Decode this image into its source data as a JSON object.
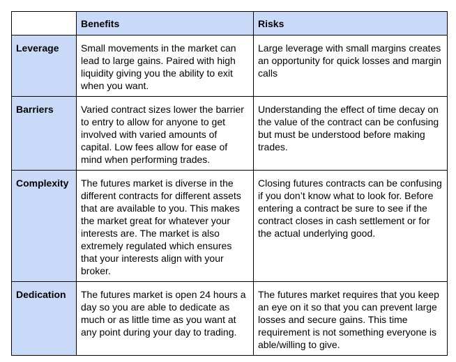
{
  "table": {
    "headers": [
      "",
      "Benefits",
      "Risks"
    ],
    "rows": [
      {
        "label": "Leverage",
        "benefits": "Small movements in the market can lead to large gains. Paired with high liquidity giving you the ability to exit when you want.",
        "risks": "Large leverage with small margins creates an opportunity for quick losses and margin calls"
      },
      {
        "label": "Barriers",
        "benefits": "Varied contract sizes lower the barrier to entry to allow for anyone to get involved with varied amounts of capital. Low fees allow for ease of mind when performing trades.",
        "risks": "Understanding the effect of time decay on the value of the contract can be confusing but must be understood before making trades."
      },
      {
        "label": "Complexity",
        "benefits": "The futures market is diverse in the different contracts for different assets that are available to you. This makes the market great for whatever your interests are. The market is also extremely regulated which ensures that your interests align with your broker.",
        "risks": "Closing futures contracts can be confusing if you don’t know what to look for. Before entering a contract be sure to see if the contract closes in cash settlement or for the actual underlying good."
      },
      {
        "label": "Dedication",
        "benefits": "The futures market is open 24 hours a day so you are able to dedicate as much or as little time as you want at any point during your day to trading.",
        "risks": "The futures market requires that you keep an eye on it so that you can prevent large losses and secure gains. This time requirement is not something everyone is able/willing to give."
      }
    ]
  },
  "colors": {
    "header_bg": "#c9daf8",
    "border": "#000000"
  }
}
